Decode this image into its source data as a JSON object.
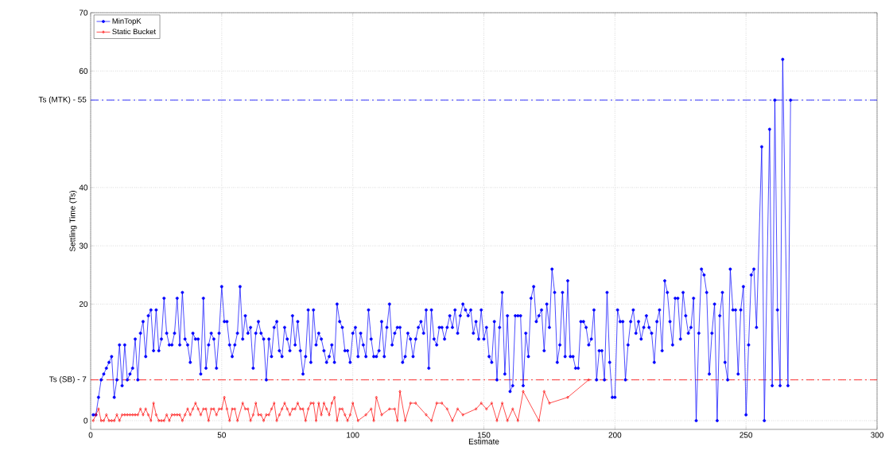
{
  "chart_data": {
    "type": "line",
    "xlabel": "Estimate",
    "ylabel": "Settling Time (Ts)",
    "xlim": [
      0,
      300
    ],
    "xticks": [
      0,
      50,
      100,
      150,
      200,
      250,
      300
    ],
    "ylim": [
      -1.5,
      70
    ],
    "yticks": [
      0,
      {
        "value": 7,
        "label": null
      },
      20,
      30,
      40,
      {
        "value": 55,
        "label": null
      },
      60,
      70
    ],
    "grid": true,
    "legend": "top left",
    "ref_lines": [
      {
        "axis": "y",
        "value": 7,
        "label": "Ts (SB) - 7",
        "color": "#ff0000",
        "line_style": "dashed"
      },
      {
        "axis": "y",
        "value": 55,
        "label": "Ts (MTK) - 55",
        "color": "#0000ff",
        "line_style": "dashed"
      }
    ],
    "series": [
      {
        "name": "MinTopK",
        "color": "#0000ff",
        "marker": "circle",
        "x": [
          1,
          2,
          3,
          4,
          5,
          6,
          7,
          8,
          9,
          10,
          11,
          12,
          13,
          14,
          15,
          16,
          17,
          18,
          19,
          20,
          21,
          22,
          23,
          24,
          25,
          26,
          27,
          28,
          29,
          30,
          31,
          32,
          33,
          34,
          35,
          36,
          37,
          38,
          39,
          40,
          41,
          42,
          43,
          44,
          45,
          46,
          47,
          48,
          49,
          50,
          51,
          52,
          53,
          54,
          55,
          56,
          57,
          58,
          59,
          60,
          61,
          62,
          63,
          64,
          65,
          66,
          67,
          68,
          69,
          70,
          71,
          72,
          73,
          74,
          75,
          76,
          77,
          78,
          79,
          80,
          81,
          82,
          83,
          84,
          85,
          86,
          87,
          88,
          89,
          90,
          91,
          92,
          93,
          94,
          95,
          96,
          97,
          98,
          99,
          100,
          101,
          102,
          103,
          104,
          105,
          106,
          107,
          108,
          109,
          110,
          111,
          112,
          113,
          114,
          115,
          116,
          117,
          118,
          119,
          120,
          121,
          122,
          123,
          124,
          125,
          126,
          127,
          128,
          129,
          130,
          131,
          132,
          133,
          134,
          135,
          136,
          137,
          138,
          139,
          140,
          141,
          142,
          143,
          144,
          145,
          146,
          147,
          148,
          149,
          150,
          151,
          152,
          153,
          154,
          155,
          156,
          157,
          158,
          159,
          160,
          161,
          162,
          163,
          164,
          165,
          166,
          167,
          168,
          169,
          170,
          171,
          172,
          173,
          174,
          175,
          176,
          177,
          178,
          179,
          180,
          181,
          182,
          183,
          184,
          185,
          186,
          187,
          188,
          189,
          190,
          191,
          192,
          193,
          194,
          195,
          196,
          197,
          198,
          199,
          200,
          201,
          202,
          203,
          204,
          205,
          206,
          207,
          208,
          209,
          210,
          211,
          212,
          213,
          214,
          215,
          216,
          217,
          218,
          219,
          220,
          221,
          222,
          223,
          224,
          225,
          226,
          227,
          228,
          229,
          230,
          231,
          232,
          233,
          234,
          235,
          236,
          237,
          238,
          239,
          240,
          241,
          242,
          243,
          244,
          245,
          246,
          247,
          248,
          249,
          250,
          251,
          252,
          253,
          254,
          256,
          257,
          259,
          260,
          261,
          262,
          263,
          264,
          266,
          267
        ],
        "values": [
          1,
          1,
          4,
          7,
          8,
          9,
          10,
          11,
          4,
          7,
          13,
          6,
          13,
          7,
          8,
          9,
          14,
          7,
          15,
          17,
          11,
          18,
          19,
          12,
          19,
          12,
          14,
          21,
          15,
          13,
          13,
          15,
          21,
          13,
          22,
          14,
          13,
          10,
          15,
          14,
          14,
          8,
          21,
          9,
          13,
          15,
          14,
          9,
          15,
          23,
          17,
          17,
          13,
          11,
          13,
          15,
          23,
          14,
          18,
          15,
          16,
          9,
          15,
          17,
          15,
          14,
          7,
          14,
          11,
          16,
          17,
          12,
          11,
          16,
          14,
          12,
          18,
          13,
          17,
          12,
          8,
          11,
          19,
          10,
          19,
          13,
          15,
          14,
          12,
          10,
          11,
          13,
          10,
          20,
          17,
          16,
          12,
          12,
          10,
          15,
          16,
          11,
          15,
          13,
          11,
          19,
          14,
          11,
          11,
          12,
          17,
          11,
          16,
          20,
          13,
          15,
          16,
          16,
          10,
          11,
          15,
          14,
          11,
          14,
          16,
          17,
          15,
          19,
          9,
          19,
          14,
          13,
          16,
          16,
          14,
          16,
          18,
          16,
          19,
          15,
          18,
          20,
          19,
          18,
          19,
          15,
          17,
          14,
          19,
          14,
          16,
          11,
          10,
          17,
          7,
          16,
          22,
          8,
          18,
          5,
          6,
          18,
          18,
          18,
          6,
          15,
          11,
          21,
          23,
          17,
          18,
          19,
          12,
          20,
          16,
          26,
          22,
          10,
          13,
          22,
          11,
          24,
          11,
          11,
          9,
          9,
          17,
          17,
          16,
          13,
          14,
          19,
          7,
          12,
          12,
          7,
          22,
          10,
          4,
          4,
          19,
          17,
          17,
          7,
          13,
          17,
          19,
          15,
          17,
          14,
          16,
          18,
          16,
          15,
          10,
          17,
          19,
          12,
          24,
          22,
          17,
          13,
          21,
          21,
          14,
          22,
          18,
          15,
          16,
          21,
          0,
          15,
          26,
          25,
          22,
          8,
          15,
          20,
          0,
          18,
          22,
          10,
          7,
          26,
          19,
          19,
          8,
          19,
          23,
          1,
          13,
          25,
          26,
          16,
          47,
          0,
          50,
          6,
          55,
          19,
          6,
          62,
          6,
          55
        ]
      },
      {
        "name": "Static Bucket",
        "color": "#ff0000",
        "marker": "diamond",
        "x": [
          1,
          2,
          3,
          4,
          5,
          6,
          7,
          8,
          9,
          10,
          11,
          12,
          13,
          14,
          15,
          16,
          17,
          18,
          19,
          20,
          21,
          22,
          23,
          24,
          25,
          26,
          27,
          28,
          29,
          30,
          31,
          32,
          33,
          34,
          35,
          36,
          37,
          38,
          39,
          40,
          41,
          42,
          43,
          44,
          45,
          46,
          47,
          48,
          49,
          50,
          51,
          52,
          53,
          54,
          55,
          56,
          58,
          59,
          60,
          61,
          62,
          63,
          64,
          65,
          66,
          67,
          68,
          69,
          70,
          71,
          72,
          73,
          74,
          75,
          76,
          77,
          78,
          79,
          80,
          81,
          82,
          83,
          84,
          85,
          86,
          87,
          88,
          89,
          90,
          91,
          92,
          93,
          94,
          95,
          96,
          97,
          98,
          99,
          100,
          102,
          105,
          107,
          108,
          109,
          111,
          114,
          116,
          117,
          118,
          120,
          122,
          124,
          128,
          130,
          132,
          134,
          136,
          138,
          140,
          142,
          147,
          149,
          151,
          153,
          155,
          157,
          159,
          161,
          163,
          165,
          171,
          173,
          175,
          182,
          190
        ],
        "values": [
          0,
          1,
          2,
          0,
          0,
          1,
          0,
          0,
          0,
          1,
          0,
          1,
          1,
          1,
          1,
          1,
          1,
          1,
          2,
          1,
          2,
          1,
          0,
          3,
          1,
          0,
          0,
          0,
          1,
          0,
          1,
          1,
          1,
          1,
          0,
          1,
          2,
          1,
          2,
          3,
          2,
          1,
          2,
          2,
          0,
          2,
          2,
          1,
          2,
          2,
          4,
          2,
          0,
          2,
          2,
          0,
          3,
          2,
          2,
          0,
          1,
          3,
          1,
          1,
          0,
          1,
          1,
          2,
          3,
          0,
          1,
          2,
          3,
          2,
          1,
          2,
          2,
          3,
          2,
          2,
          0,
          2,
          3,
          3,
          0,
          3,
          1,
          3,
          2,
          1,
          3,
          4,
          0,
          2,
          2,
          1,
          0,
          1,
          3,
          0,
          1,
          2,
          0,
          4,
          1,
          2,
          2,
          0,
          5,
          0,
          3,
          3,
          1,
          0,
          3,
          3,
          2,
          0,
          2,
          1,
          2,
          3,
          2,
          3,
          0,
          3,
          0,
          2,
          0,
          5,
          0,
          5,
          3,
          4,
          7
        ]
      }
    ]
  }
}
